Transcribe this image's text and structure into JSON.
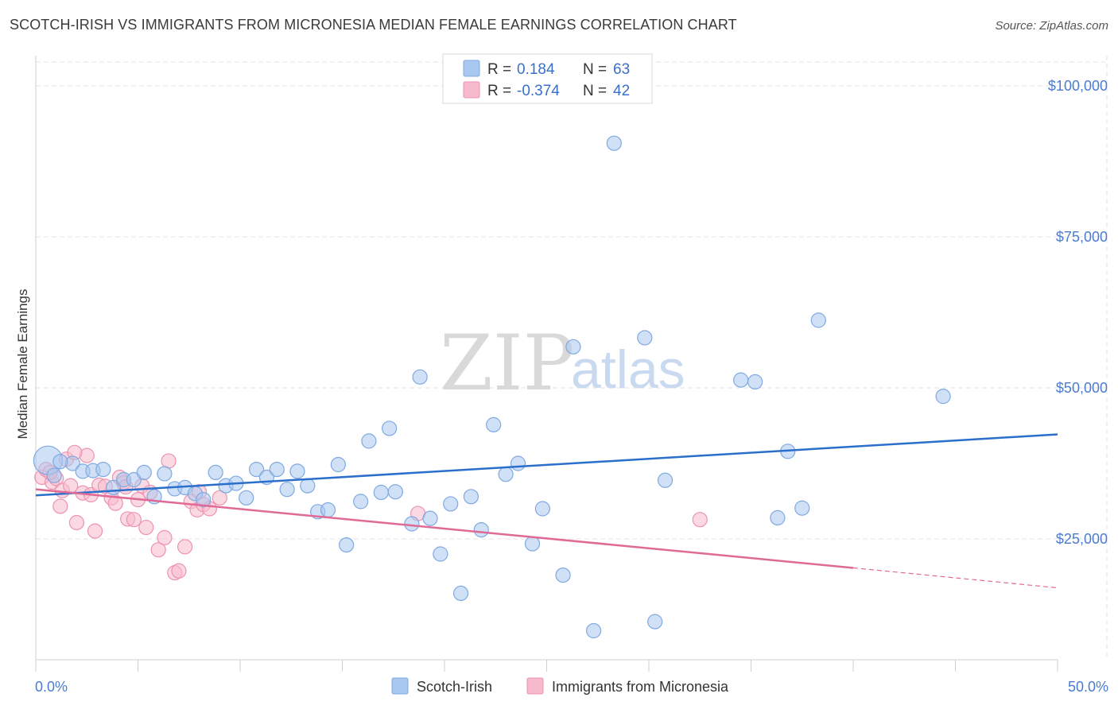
{
  "title": "SCOTCH-IRISH VS IMMIGRANTS FROM MICRONESIA MEDIAN FEMALE EARNINGS CORRELATION CHART",
  "source": "Source: ZipAtlas.com",
  "colors": {
    "blue_fill": "#a9c8f0",
    "blue_stroke": "#7fa9e0",
    "blue_line": "#2b6fcc",
    "pink_fill": "#f7b9cc",
    "pink_stroke": "#ec93b0",
    "pink_line": "#e06a96",
    "grid": "#e3e3e3",
    "tick_text": "#4a7bd0"
  },
  "legend": {
    "items": [
      {
        "r_label": "R = ",
        "r_value": " 0.184",
        "n_label": "N = ",
        "n_value": "63"
      },
      {
        "r_label": "R = ",
        "r_value": "-0.374",
        "n_label": "N = ",
        "n_value": "42"
      }
    ]
  },
  "watermark": {
    "zip": "ZIP",
    "atlas": "atlas"
  },
  "chart_data": {
    "type": "scatter",
    "xlabel": "",
    "ylabel": "Median Female Earnings",
    "xlim": [
      0,
      50
    ],
    "ylim": [
      5000,
      105000
    ],
    "x_tick_labels": [
      "0.0%",
      "50.0%"
    ],
    "y_ticks": [
      25000,
      50000,
      75000,
      100000
    ],
    "y_tick_labels": [
      "$25,000",
      "$50,000",
      "$75,000",
      "$100,000"
    ],
    "grid": true,
    "legend_position": "bottom",
    "series": [
      {
        "name": "Scotch-Irish",
        "trend": {
          "x": [
            0,
            50
          ],
          "y": [
            32200,
            42300
          ]
        },
        "points": [
          {
            "x": 0.6,
            "y": 38000,
            "r": 18
          },
          {
            "x": 1.8,
            "y": 37500
          },
          {
            "x": 2.3,
            "y": 36200
          },
          {
            "x": 2.8,
            "y": 36300
          },
          {
            "x": 3.3,
            "y": 36500
          },
          {
            "x": 3.8,
            "y": 33500
          },
          {
            "x": 4.3,
            "y": 34800
          },
          {
            "x": 4.8,
            "y": 34800
          },
          {
            "x": 5.3,
            "y": 36000
          },
          {
            "x": 5.8,
            "y": 32000
          },
          {
            "x": 6.3,
            "y": 35800
          },
          {
            "x": 6.8,
            "y": 33300
          },
          {
            "x": 7.3,
            "y": 33500
          },
          {
            "x": 7.8,
            "y": 32500
          },
          {
            "x": 8.2,
            "y": 31500
          },
          {
            "x": 8.8,
            "y": 36000
          },
          {
            "x": 9.3,
            "y": 33800
          },
          {
            "x": 9.8,
            "y": 34200
          },
          {
            "x": 10.3,
            "y": 31800
          },
          {
            "x": 10.8,
            "y": 36500
          },
          {
            "x": 11.3,
            "y": 35200
          },
          {
            "x": 11.8,
            "y": 36500
          },
          {
            "x": 12.3,
            "y": 33200
          },
          {
            "x": 12.8,
            "y": 36200
          },
          {
            "x": 13.3,
            "y": 33800
          },
          {
            "x": 13.8,
            "y": 29500
          },
          {
            "x": 14.3,
            "y": 29800
          },
          {
            "x": 14.8,
            "y": 37300
          },
          {
            "x": 15.2,
            "y": 24000
          },
          {
            "x": 15.9,
            "y": 31200
          },
          {
            "x": 16.3,
            "y": 41200
          },
          {
            "x": 16.9,
            "y": 32700
          },
          {
            "x": 17.3,
            "y": 43300
          },
          {
            "x": 17.6,
            "y": 32800
          },
          {
            "x": 18.4,
            "y": 27500
          },
          {
            "x": 18.8,
            "y": 51800
          },
          {
            "x": 19.3,
            "y": 28400
          },
          {
            "x": 19.8,
            "y": 22500
          },
          {
            "x": 20.3,
            "y": 30800
          },
          {
            "x": 20.8,
            "y": 16000
          },
          {
            "x": 21.3,
            "y": 32000
          },
          {
            "x": 21.8,
            "y": 26500
          },
          {
            "x": 22.4,
            "y": 43900
          },
          {
            "x": 23.0,
            "y": 35700
          },
          {
            "x": 23.6,
            "y": 37500
          },
          {
            "x": 24.3,
            "y": 24200
          },
          {
            "x": 24.8,
            "y": 30000
          },
          {
            "x": 25.8,
            "y": 19000
          },
          {
            "x": 26.3,
            "y": 56800
          },
          {
            "x": 27.3,
            "y": 9800
          },
          {
            "x": 28.3,
            "y": 90500
          },
          {
            "x": 29.8,
            "y": 58300
          },
          {
            "x": 30.3,
            "y": 11300
          },
          {
            "x": 30.8,
            "y": 34700
          },
          {
            "x": 34.5,
            "y": 51300
          },
          {
            "x": 35.2,
            "y": 51000
          },
          {
            "x": 36.3,
            "y": 28500
          },
          {
            "x": 36.8,
            "y": 39500
          },
          {
            "x": 38.3,
            "y": 61200
          },
          {
            "x": 37.5,
            "y": 30100
          },
          {
            "x": 44.4,
            "y": 48600
          },
          {
            "x": 1.2,
            "y": 37800
          },
          {
            "x": 0.9,
            "y": 35500
          }
        ]
      },
      {
        "name": "Immigrants from Micronesia",
        "trend": {
          "x": [
            0,
            40
          ],
          "y": [
            33200,
            20200
          ]
        },
        "trend_dashed": {
          "x": [
            40,
            50
          ],
          "y": [
            20200,
            16900
          ]
        },
        "points": [
          {
            "x": 0.3,
            "y": 35200
          },
          {
            "x": 0.5,
            "y": 36500
          },
          {
            "x": 0.8,
            "y": 34400
          },
          {
            "x": 1.0,
            "y": 35000
          },
          {
            "x": 1.3,
            "y": 33000
          },
          {
            "x": 1.5,
            "y": 38200
          },
          {
            "x": 1.2,
            "y": 30400
          },
          {
            "x": 1.7,
            "y": 33800
          },
          {
            "x": 2.0,
            "y": 27700
          },
          {
            "x": 2.3,
            "y": 32600
          },
          {
            "x": 2.5,
            "y": 38800
          },
          {
            "x": 2.7,
            "y": 32300
          },
          {
            "x": 2.9,
            "y": 26300
          },
          {
            "x": 3.1,
            "y": 33900
          },
          {
            "x": 3.4,
            "y": 33700
          },
          {
            "x": 3.7,
            "y": 31800
          },
          {
            "x": 3.9,
            "y": 30900
          },
          {
            "x": 4.1,
            "y": 35200
          },
          {
            "x": 4.3,
            "y": 34300
          },
          {
            "x": 4.5,
            "y": 28300
          },
          {
            "x": 4.8,
            "y": 28200
          },
          {
            "x": 5.0,
            "y": 31500
          },
          {
            "x": 5.2,
            "y": 33800
          },
          {
            "x": 5.4,
            "y": 26900
          },
          {
            "x": 5.6,
            "y": 32700
          },
          {
            "x": 6.0,
            "y": 23200
          },
          {
            "x": 6.3,
            "y": 25200
          },
          {
            "x": 6.5,
            "y": 37900
          },
          {
            "x": 6.8,
            "y": 19400
          },
          {
            "x": 7.0,
            "y": 19700
          },
          {
            "x": 7.3,
            "y": 23700
          },
          {
            "x": 7.6,
            "y": 31200
          },
          {
            "x": 7.9,
            "y": 29800
          },
          {
            "x": 8.2,
            "y": 30700
          },
          {
            "x": 8.5,
            "y": 30000
          },
          {
            "x": 9.0,
            "y": 31800
          },
          {
            "x": 18.7,
            "y": 29200
          },
          {
            "x": 32.5,
            "y": 28200
          },
          {
            "x": 1.9,
            "y": 39300
          },
          {
            "x": 0.7,
            "y": 36000
          },
          {
            "x": 4.4,
            "y": 33600
          },
          {
            "x": 8.0,
            "y": 32800
          }
        ]
      }
    ]
  }
}
